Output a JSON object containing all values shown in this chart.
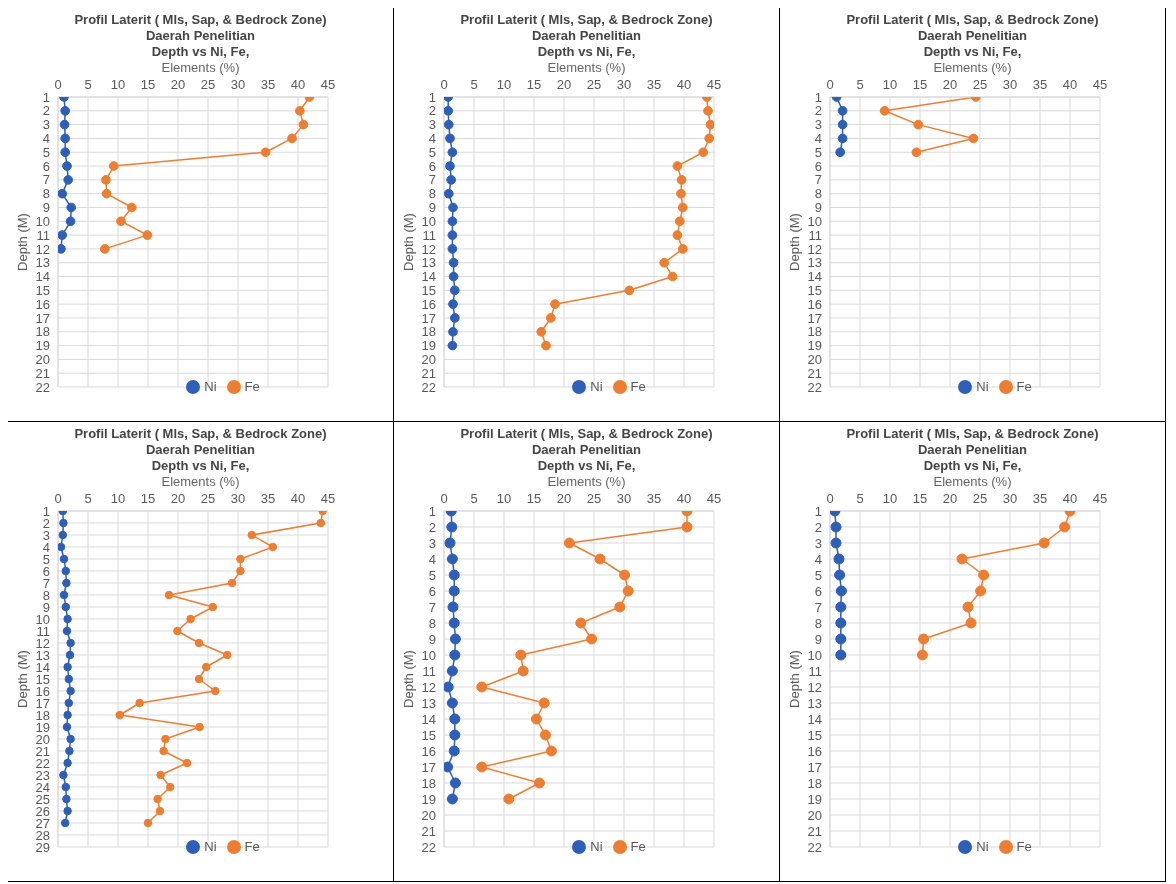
{
  "chart_data": [
    {
      "type": "line",
      "title": "Profil Laterit ( Mls, Sap, & Bedrock Zone)\nDaerah Penelitian\nDepth vs Ni, Fe,",
      "xlabel": "Elements (%)",
      "ylabel": "Depth (M)",
      "xlim": [
        0,
        45
      ],
      "xticks": [
        0,
        5,
        10,
        15,
        20,
        25,
        30,
        35,
        40,
        45
      ],
      "ylim": [
        22,
        1
      ],
      "yticks": [
        1,
        2,
        3,
        4,
        5,
        6,
        7,
        8,
        9,
        10,
        11,
        12,
        13,
        14,
        15,
        16,
        17,
        18,
        19,
        20,
        21,
        22
      ],
      "grid": true,
      "legend": "bottom",
      "marker": "circle",
      "series": [
        {
          "name": "Ni",
          "color": "#2e5fb8",
          "x": [
            1.0,
            1.2,
            1.1,
            1.2,
            1.2,
            1.5,
            1.7,
            0.7,
            2.2,
            2.1,
            0.7,
            0.5
          ],
          "values": [
            1,
            2,
            3,
            4,
            5,
            6,
            7,
            8,
            9,
            10,
            11,
            12
          ]
        },
        {
          "name": "Fe",
          "color": "#ed7d31",
          "x": [
            41.9,
            40.3,
            40.9,
            39.0,
            34.6,
            9.3,
            8.0,
            8.1,
            12.3,
            10.5,
            14.9,
            7.8
          ],
          "values": [
            1,
            2,
            3,
            4,
            5,
            6,
            7,
            8,
            9,
            10,
            11,
            12
          ]
        }
      ]
    },
    {
      "type": "line",
      "title": "Profil Laterit ( Mls, Sap, & Bedrock Zone)\nDaerah Penelitian\nDepth vs Ni, Fe,",
      "xlabel": "Elements (%)",
      "ylabel": "Depth (M)",
      "xlim": [
        0,
        45
      ],
      "xticks": [
        0,
        5,
        10,
        15,
        20,
        25,
        30,
        35,
        40,
        45
      ],
      "ylim": [
        22,
        1
      ],
      "yticks": [
        1,
        2,
        3,
        4,
        5,
        6,
        7,
        8,
        9,
        10,
        11,
        12,
        13,
        14,
        15,
        16,
        17,
        18,
        19,
        20,
        21,
        22
      ],
      "grid": true,
      "legend": "bottom",
      "marker": "circle",
      "series": [
        {
          "name": "Ni",
          "color": "#2e5fb8",
          "x": [
            0.7,
            0.7,
            0.8,
            1.0,
            1.4,
            1.0,
            1.2,
            0.8,
            1.5,
            1.4,
            1.4,
            1.4,
            1.6,
            1.6,
            1.8,
            1.5,
            1.8,
            1.5,
            1.4
          ],
          "values": [
            1,
            2,
            3,
            4,
            5,
            6,
            7,
            8,
            9,
            10,
            11,
            12,
            13,
            14,
            15,
            16,
            17,
            18,
            19
          ]
        },
        {
          "name": "Fe",
          "color": "#ed7d31",
          "x": [
            43.8,
            44.0,
            44.4,
            44.2,
            43.2,
            38.9,
            39.6,
            39.5,
            39.8,
            39.3,
            38.9,
            39.8,
            36.7,
            38.1,
            30.9,
            18.5,
            17.8,
            16.2,
            17.0
          ],
          "values": [
            1,
            2,
            3,
            4,
            5,
            6,
            7,
            8,
            9,
            10,
            11,
            12,
            13,
            14,
            15,
            16,
            17,
            18,
            19
          ]
        }
      ]
    },
    {
      "type": "line",
      "title": "Profil Laterit ( Mls, Sap, & Bedrock Zone)\nDaerah Penelitian\nDepth vs Ni, Fe,",
      "xlabel": "Elements (%)",
      "ylabel": "Depth (M)",
      "xlim": [
        0,
        45
      ],
      "xticks": [
        0,
        5,
        10,
        15,
        20,
        25,
        30,
        35,
        40,
        45
      ],
      "ylim": [
        22,
        1
      ],
      "yticks": [
        1,
        2,
        3,
        4,
        5,
        6,
        7,
        8,
        9,
        10,
        11,
        12,
        13,
        14,
        15,
        16,
        17,
        18,
        19,
        20,
        21,
        22
      ],
      "grid": true,
      "legend": "bottom",
      "marker": "circle",
      "series": [
        {
          "name": "Ni",
          "color": "#2e5fb8",
          "x": [
            1.1,
            2.1,
            2.1,
            2.1,
            1.7
          ],
          "values": [
            1,
            2,
            3,
            4,
            5
          ]
        },
        {
          "name": "Fe",
          "color": "#ed7d31",
          "x": [
            24.3,
            9.1,
            14.7,
            23.9,
            14.4
          ],
          "values": [
            1,
            2,
            3,
            4,
            5
          ]
        }
      ]
    },
    {
      "type": "line",
      "title": "Profil Laterit ( Mls, Sap, & Bedrock Zone)\nDaerah Penelitian\nDepth vs Ni, Fe,",
      "xlabel": "Elements (%)",
      "ylabel": "Depth (M)",
      "xlim": [
        0,
        45
      ],
      "xticks": [
        0,
        5,
        10,
        15,
        20,
        25,
        30,
        35,
        40,
        45
      ],
      "ylim": [
        29,
        1
      ],
      "yticks": [
        1,
        2,
        3,
        4,
        5,
        6,
        7,
        8,
        9,
        10,
        11,
        12,
        13,
        14,
        15,
        16,
        17,
        18,
        19,
        20,
        21,
        22,
        23,
        24,
        25,
        26,
        27,
        28,
        29
      ],
      "grid": true,
      "legend": "bottom",
      "marker": "circle",
      "series": [
        {
          "name": "Ni",
          "color": "#2e5fb8",
          "x": [
            0.8,
            0.9,
            0.8,
            0.5,
            1.0,
            1.3,
            1.4,
            1.0,
            1.3,
            1.6,
            1.5,
            2.1,
            2.0,
            1.6,
            1.8,
            2.1,
            1.8,
            1.6,
            1.5,
            2.1,
            1.9,
            1.6,
            0.9,
            1.3,
            1.4,
            1.6,
            1.2
          ],
          "values": [
            1,
            2,
            3,
            4,
            5,
            6,
            7,
            8,
            9,
            10,
            11,
            12,
            13,
            14,
            15,
            16,
            17,
            18,
            19,
            20,
            21,
            22,
            23,
            24,
            25,
            26,
            27
          ]
        },
        {
          "name": "Fe",
          "color": "#ed7d31",
          "x": [
            44.1,
            43.8,
            32.3,
            35.8,
            30.4,
            30.4,
            29.0,
            18.5,
            25.8,
            22.1,
            19.9,
            23.5,
            28.2,
            24.7,
            23.5,
            26.2,
            13.6,
            10.3,
            23.6,
            17.9,
            17.6,
            21.5,
            17.1,
            18.7,
            16.6,
            17.0,
            15.0
          ],
          "values": [
            1,
            2,
            3,
            4,
            5,
            6,
            7,
            8,
            9,
            10,
            11,
            12,
            13,
            14,
            15,
            16,
            17,
            18,
            19,
            20,
            21,
            22,
            23,
            24,
            25,
            26,
            27
          ]
        }
      ]
    },
    {
      "type": "line",
      "title": "Profil Laterit ( Mls, Sap, & Bedrock Zone)\nDaerah Penelitian\nDepth vs Ni, Fe,",
      "xlabel": "Elements (%)",
      "ylabel": "Depth (M)",
      "xlim": [
        0,
        45
      ],
      "xticks": [
        0,
        5,
        10,
        15,
        20,
        25,
        30,
        35,
        40,
        45
      ],
      "ylim": [
        22,
        1
      ],
      "yticks": [
        1,
        2,
        3,
        4,
        5,
        6,
        7,
        8,
        9,
        10,
        11,
        12,
        13,
        14,
        15,
        16,
        17,
        18,
        19,
        20,
        21,
        22
      ],
      "grid": true,
      "legend": "bottom",
      "marker": "circle",
      "series": [
        {
          "name": "Ni",
          "color": "#2e5fb8",
          "x": [
            1.2,
            1.3,
            1.0,
            1.4,
            1.7,
            1.7,
            1.5,
            1.7,
            1.9,
            1.8,
            1.4,
            0.7,
            1.4,
            1.8,
            1.8,
            1.7,
            0.6,
            1.9,
            1.4
          ],
          "values": [
            1,
            2,
            3,
            4,
            5,
            6,
            7,
            8,
            9,
            10,
            11,
            12,
            13,
            14,
            15,
            16,
            17,
            18,
            19
          ]
        },
        {
          "name": "Fe",
          "color": "#ed7d31",
          "x": [
            40.5,
            40.5,
            20.9,
            26.0,
            30.1,
            30.7,
            29.3,
            22.8,
            24.6,
            12.8,
            13.2,
            6.3,
            16.7,
            15.4,
            16.9,
            17.9,
            6.3,
            15.9,
            10.8
          ],
          "values": [
            1,
            2,
            3,
            4,
            5,
            6,
            7,
            8,
            9,
            10,
            11,
            12,
            13,
            14,
            15,
            16,
            17,
            18,
            19
          ]
        }
      ]
    },
    {
      "type": "line",
      "title": "Profil Laterit ( Mls, Sap, & Bedrock Zone)\nDaerah Penelitian\nDepth vs Ni, Fe,",
      "xlabel": "Elements (%)",
      "ylabel": "Depth (M)",
      "xlim": [
        0,
        45
      ],
      "xticks": [
        0,
        5,
        10,
        15,
        20,
        25,
        30,
        35,
        40,
        45
      ],
      "ylim": [
        22,
        1
      ],
      "yticks": [
        1,
        2,
        3,
        4,
        5,
        6,
        7,
        8,
        9,
        10,
        11,
        12,
        13,
        14,
        15,
        16,
        17,
        18,
        19,
        20,
        21,
        22
      ],
      "grid": true,
      "legend": "bottom",
      "marker": "circle",
      "series": [
        {
          "name": "Ni",
          "color": "#2e5fb8",
          "x": [
            0.8,
            1.0,
            1.0,
            1.5,
            1.6,
            1.9,
            1.8,
            1.8,
            1.8,
            1.8
          ],
          "values": [
            1,
            2,
            3,
            4,
            5,
            6,
            7,
            8,
            9,
            10
          ]
        },
        {
          "name": "Fe",
          "color": "#ed7d31",
          "x": [
            40.0,
            39.1,
            35.7,
            22.0,
            25.6,
            25.1,
            23.0,
            23.5,
            15.6,
            15.4
          ],
          "values": [
            1,
            2,
            3,
            4,
            5,
            6,
            7,
            8,
            9,
            10
          ]
        }
      ]
    }
  ]
}
